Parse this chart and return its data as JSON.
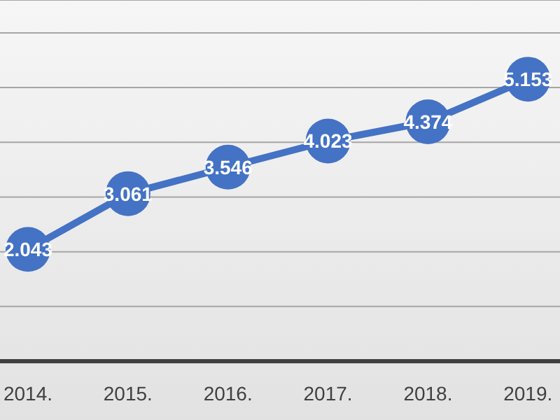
{
  "chart_data": {
    "type": "line",
    "categories": [
      "2014.",
      "2015.",
      "2016.",
      "2017.",
      "2018.",
      "2019."
    ],
    "series": [
      {
        "color": "#4472c4",
        "values": [
          2.043,
          3.061,
          3.546,
          4.023,
          4.374,
          5.153
        ]
      }
    ],
    "ylim": [
      0,
      6.6
    ],
    "yticks": [
      {
        "value": 0,
        "label": null
      },
      {
        "value": 1,
        "label": null
      },
      {
        "value": 2,
        "label": null
      },
      {
        "value": 3,
        "label": null
      },
      {
        "value": 4,
        "label": null
      },
      {
        "value": 5,
        "label": null
      },
      {
        "value": 6,
        "label": null
      }
    ],
    "grid": "y",
    "tick_labels": "x",
    "marker": "circle",
    "data_labels": true,
    "legend": false
  }
}
